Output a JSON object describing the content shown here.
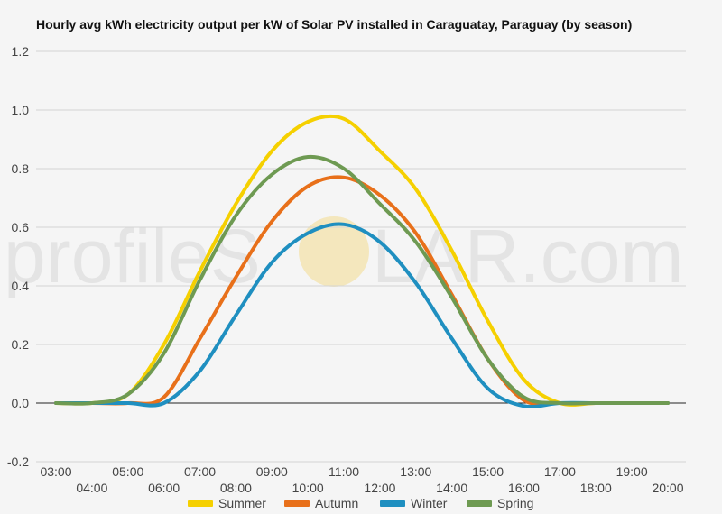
{
  "chart_data": {
    "type": "line",
    "title": "Hourly avg kWh electricity output per kW of Solar PV installed in Caraguatay, Paraguay (by season)",
    "xlabel": "",
    "ylabel": "",
    "ylim": [
      -0.2,
      1.2
    ],
    "yticks": [
      "-0.2",
      "0.0",
      "0.2",
      "0.4",
      "0.6",
      "0.8",
      "1.0",
      "1.2"
    ],
    "categories": [
      "03:00",
      "04:00",
      "05:00",
      "06:00",
      "07:00",
      "08:00",
      "09:00",
      "10:00",
      "11:00",
      "12:00",
      "13:00",
      "14:00",
      "15:00",
      "16:00",
      "17:00",
      "18:00",
      "19:00",
      "20:00"
    ],
    "grid": true,
    "legend_position": "bottom",
    "series": [
      {
        "name": "Summer",
        "color": "#f5d000",
        "values": [
          0.0,
          0.0,
          0.03,
          0.2,
          0.45,
          0.68,
          0.86,
          0.96,
          0.97,
          0.86,
          0.73,
          0.52,
          0.28,
          0.08,
          0.0,
          0.0,
          0.0,
          0.0
        ]
      },
      {
        "name": "Autumn",
        "color": "#e8701a",
        "values": [
          0.0,
          0.0,
          0.0,
          0.02,
          0.22,
          0.43,
          0.62,
          0.74,
          0.77,
          0.71,
          0.58,
          0.37,
          0.15,
          0.01,
          0.0,
          0.0,
          0.0,
          0.0
        ]
      },
      {
        "name": "Winter",
        "color": "#1f8fc0",
        "values": [
          0.0,
          0.0,
          0.0,
          0.0,
          0.11,
          0.3,
          0.48,
          0.58,
          0.61,
          0.55,
          0.41,
          0.22,
          0.05,
          -0.01,
          0.0,
          0.0,
          0.0,
          0.0
        ]
      },
      {
        "name": "Spring",
        "color": "#6e9a52",
        "values": [
          0.0,
          0.0,
          0.03,
          0.17,
          0.42,
          0.64,
          0.78,
          0.84,
          0.8,
          0.68,
          0.55,
          0.36,
          0.15,
          0.02,
          0.0,
          0.0,
          0.0,
          0.0
        ]
      }
    ]
  },
  "watermark": {
    "text_left": "profileS",
    "text_right": "LAR.com"
  }
}
